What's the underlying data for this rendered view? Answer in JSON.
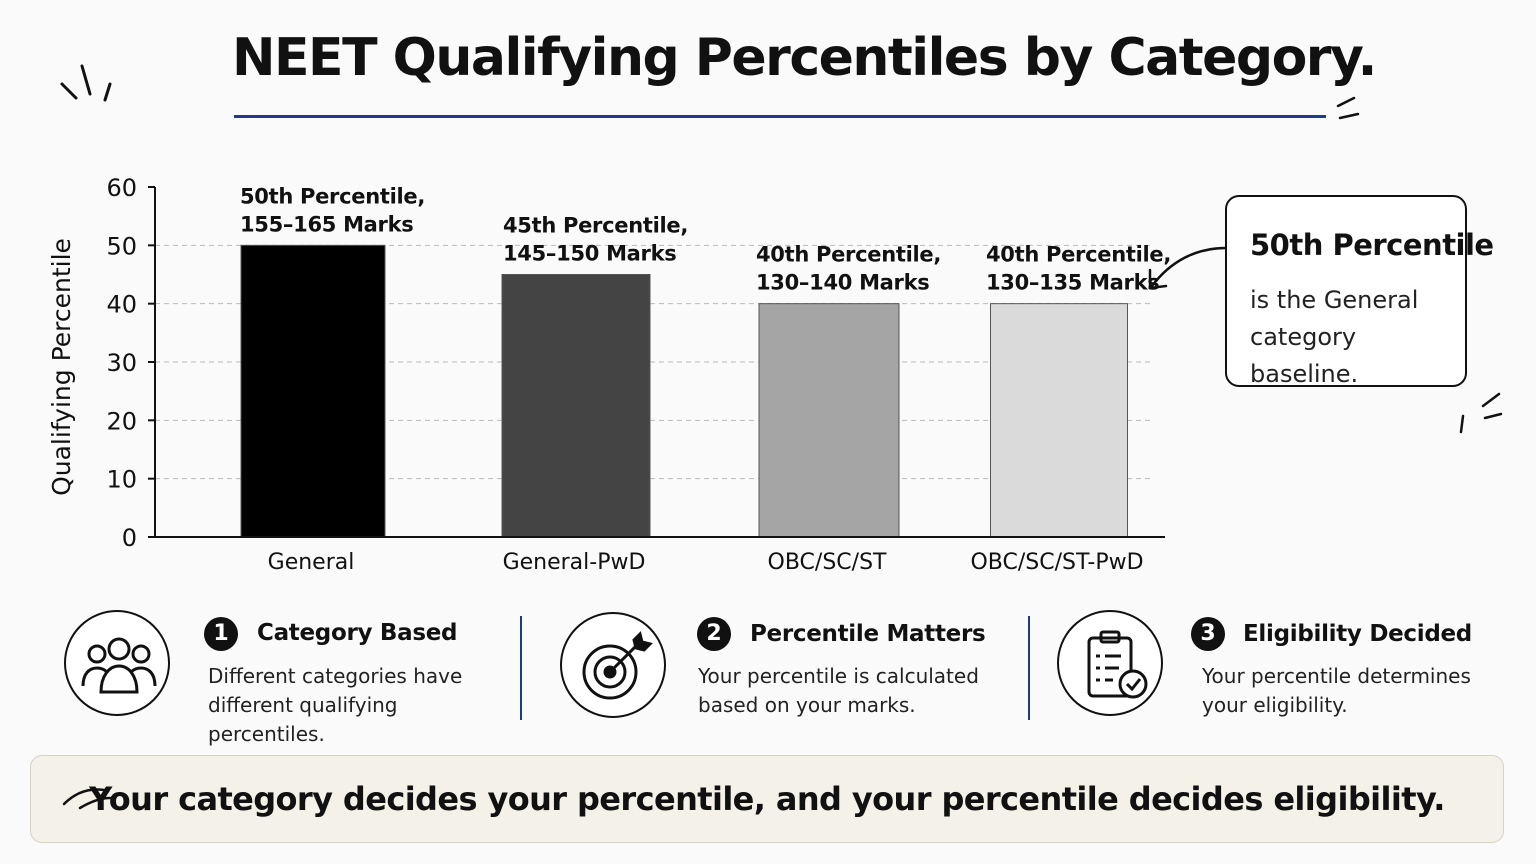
{
  "title": "NEET Qualifying Percentiles by Category.",
  "chart_data": {
    "type": "bar",
    "categories": [
      "General",
      "General-PwD",
      "OBC/SC/ST",
      "OBC/SC/ST-PwD"
    ],
    "values": [
      50,
      45,
      40,
      40
    ],
    "data_labels": [
      [
        "50th Percentile,",
        "155–165 Marks"
      ],
      [
        "45th Percentile,",
        "145–150 Marks"
      ],
      [
        "40th Percentile,",
        "130–140 Marks"
      ],
      [
        "40th Percentile,",
        "130–135 Marks"
      ]
    ],
    "bar_colors": [
      "#000000",
      "#444444",
      "#a5a5a5",
      "#dadada"
    ],
    "ylabel": "Qualifying Percentile",
    "xlabel": "",
    "ylim": [
      0,
      60
    ],
    "yticks": [
      0,
      10,
      20,
      30,
      40,
      50,
      60
    ],
    "grid": "horizontal dashed"
  },
  "callout": {
    "heading": "50th Percentile",
    "body": "is the General category baseline."
  },
  "steps": [
    {
      "number": "1",
      "title": "Category Based",
      "description": "Different categories have different qualifying percentiles.",
      "icon": "people-group-icon"
    },
    {
      "number": "2",
      "title": "Percentile Matters",
      "description": "Your percentile is calculated based on your marks.",
      "icon": "target-icon"
    },
    {
      "number": "3",
      "title": "Eligibility Decided",
      "description": "Your percentile determines your eligibility.",
      "icon": "clipboard-check-icon"
    }
  ],
  "banner": "Your category decides your percentile, and your percentile decides eligibility.",
  "colors": {
    "accent": "#1f3a8a",
    "banner_bg": "#f4f1e8"
  }
}
